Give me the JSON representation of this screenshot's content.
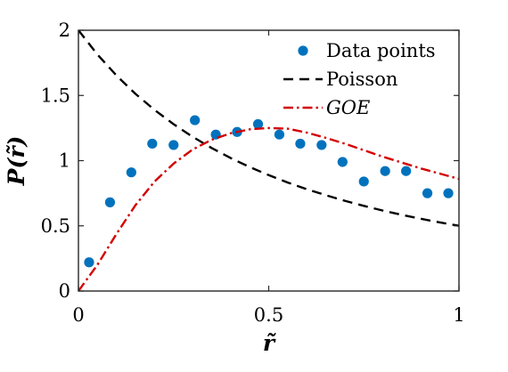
{
  "chart_data": {
    "type": "line",
    "title": "",
    "xlabel": "r̃",
    "ylabel": "P(r̃)",
    "xlim": [
      0,
      1
    ],
    "ylim": [
      0,
      2
    ],
    "x_ticks": [
      {
        "value": 0,
        "label": "0"
      },
      {
        "value": 0.5,
        "label": "0.5"
      },
      {
        "value": 1,
        "label": "1"
      }
    ],
    "y_ticks": [
      {
        "value": 0,
        "label": "0"
      },
      {
        "value": 0.5,
        "label": "0.5"
      },
      {
        "value": 1,
        "label": "1"
      },
      {
        "value": 1.5,
        "label": "1.5"
      },
      {
        "value": 2,
        "label": "2"
      }
    ],
    "grid": false,
    "legend_position": "top-right",
    "series": [
      {
        "name": "Data points",
        "kind": "scatter",
        "color": "#0072BD",
        "x": [
          0.028,
          0.083,
          0.139,
          0.194,
          0.25,
          0.306,
          0.361,
          0.417,
          0.472,
          0.528,
          0.583,
          0.639,
          0.694,
          0.75,
          0.806,
          0.861,
          0.917,
          0.972
        ],
        "y": [
          0.22,
          0.68,
          0.91,
          1.13,
          1.12,
          1.31,
          1.2,
          1.22,
          1.28,
          1.2,
          1.13,
          1.12,
          0.99,
          0.84,
          0.92,
          0.92,
          0.75,
          0.75
        ]
      },
      {
        "name": "Poisson",
        "kind": "line",
        "color": "#000000",
        "dash": "dashed",
        "x": [
          0,
          0.05,
          0.1,
          0.15,
          0.2,
          0.25,
          0.3,
          0.35,
          0.4,
          0.45,
          0.5,
          0.55,
          0.6,
          0.65,
          0.7,
          0.75,
          0.8,
          0.85,
          0.9,
          0.95,
          1
        ],
        "y": [
          2.0,
          1.814,
          1.653,
          1.512,
          1.389,
          1.28,
          1.183,
          1.097,
          1.02,
          0.951,
          0.889,
          0.832,
          0.781,
          0.735,
          0.692,
          0.653,
          0.617,
          0.584,
          0.554,
          0.526,
          0.5
        ]
      },
      {
        "name": "GOE",
        "kind": "line",
        "color": "#D40000",
        "dash": "dashdot",
        "x": [
          0,
          0.05,
          0.1,
          0.15,
          0.2,
          0.25,
          0.3,
          0.35,
          0.4,
          0.45,
          0.5,
          0.55,
          0.6,
          0.65,
          0.7,
          0.75,
          0.8,
          0.85,
          0.9,
          0.95,
          1
        ],
        "y": [
          0.0,
          0.201,
          0.438,
          0.659,
          0.84,
          0.977,
          1.085,
          1.16,
          1.21,
          1.24,
          1.25,
          1.245,
          1.215,
          1.175,
          1.13,
          1.08,
          1.03,
          0.985,
          0.94,
          0.9,
          0.86
        ]
      }
    ]
  }
}
